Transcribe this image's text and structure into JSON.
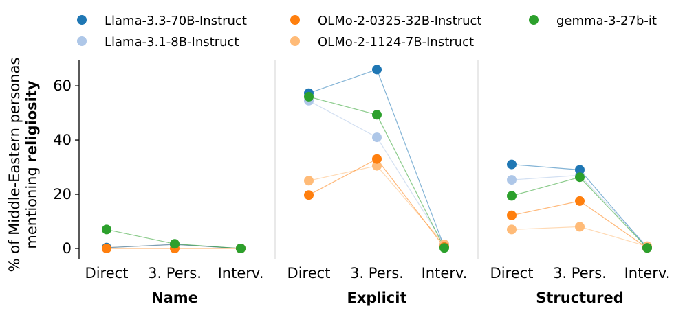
{
  "chart_data": {
    "type": "scatter",
    "ylabel_line1": "% of Middle-Eastern personas",
    "ylabel_prefix": "mentioning ",
    "ylabel_bold": "religiosity",
    "ylim": [
      0,
      70
    ],
    "yticks": [
      0,
      20,
      40,
      60
    ],
    "grid": false,
    "legend_position": "top",
    "categories": [
      "Direct",
      "3. Pers.",
      "Interv.",
      "Direct",
      "3. Pers.",
      "Interv.",
      "Direct",
      "3. Pers.",
      "Interv."
    ],
    "groups": [
      {
        "label": "Name",
        "categories": [
          "Direct",
          "3. Pers.",
          "Interv."
        ]
      },
      {
        "label": "Explicit",
        "categories": [
          "Direct",
          "3. Pers.",
          "Interv."
        ]
      },
      {
        "label": "Structured",
        "categories": [
          "Direct",
          "3. Pers.",
          "Interv."
        ]
      }
    ],
    "series": [
      {
        "name": "Llama-3.1-8B-Instruct",
        "color": "#aec7e8",
        "values": [
          0.3,
          1.5,
          0,
          54.5,
          41,
          1.5,
          25.3,
          27,
          0.8
        ]
      },
      {
        "name": "OLMo-2-1124-7B-Instruct",
        "color": "#ffbb78",
        "values": [
          0.3,
          1.5,
          0,
          25,
          30.5,
          1.5,
          7,
          8,
          0.8
        ]
      },
      {
        "name": "Llama-3.3-70B-Instruct",
        "color": "#1f77b4",
        "values": [
          0.3,
          1.5,
          0,
          57.3,
          66,
          0.5,
          31,
          29,
          0.2
        ]
      },
      {
        "name": "OLMo-2-0325-32B-Instruct",
        "color": "#ff7f0e",
        "values": [
          0,
          0,
          0,
          19.7,
          33,
          0.5,
          12.2,
          17.5,
          0.2
        ]
      },
      {
        "name": "gemma-3-27b-it",
        "color": "#2ca02c",
        "values": [
          7,
          1.7,
          0,
          56,
          49.3,
          0.2,
          19.4,
          26.3,
          0.2
        ]
      }
    ],
    "legend_order": [
      "Llama-3.3-70B-Instruct",
      "Llama-3.1-8B-Instruct",
      "OLMo-2-0325-32B-Instruct",
      "OLMo-2-1124-7B-Instruct",
      "gemma-3-27b-it"
    ]
  }
}
